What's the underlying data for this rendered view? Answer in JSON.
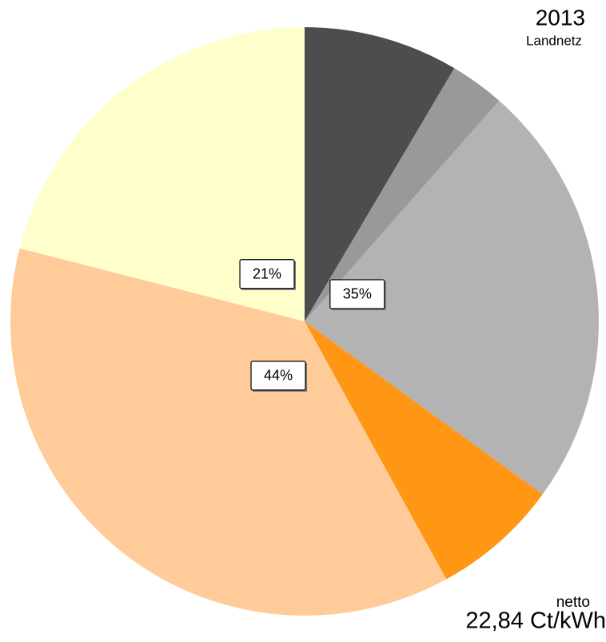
{
  "chart_data": {
    "type": "pie",
    "title": "2013",
    "subtitle": "Landnetz",
    "annotations": [
      "netto",
      "22,84 Ct/kWh"
    ],
    "values": [
      8.5,
      3,
      23.5,
      7,
      37,
      21
    ],
    "colors": [
      "#4d4d4d",
      "#999999",
      "#b3b3b3",
      "#ff9614",
      "#ffcc99",
      "#ffffcc"
    ],
    "groups": {
      "values": [
        35,
        44,
        21
      ],
      "value_labels": [
        "35%",
        "44%",
        "21%"
      ]
    }
  }
}
